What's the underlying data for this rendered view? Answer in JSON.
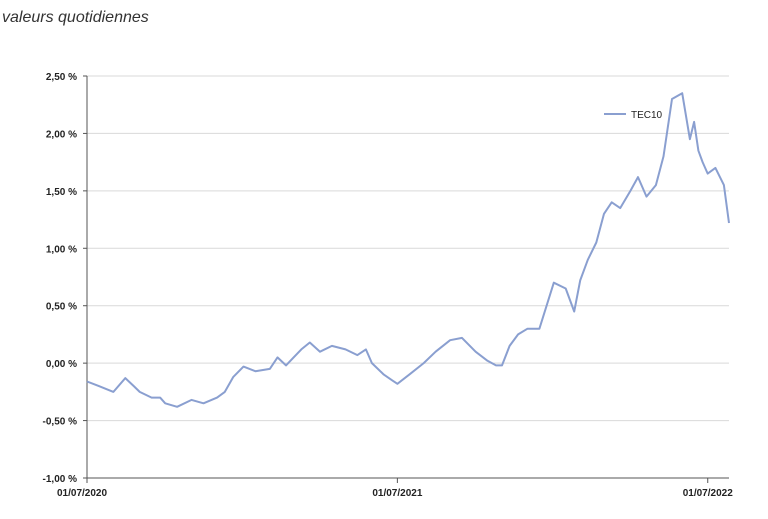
{
  "chart_data": {
    "type": "line",
    "subtitle": "valeurs quotidiennes",
    "title": "",
    "xlabel": "",
    "ylabel": "",
    "ylim": [
      -1.0,
      2.5
    ],
    "xlim": [
      "2020-07-01",
      "2022-07-26"
    ],
    "grid": "horizontal",
    "legend": "top-right",
    "color": "#8a9fd0",
    "y_ticks": [
      {
        "value": 2.5,
        "label": "2,50 %"
      },
      {
        "value": 2.0,
        "label": "2,00 %"
      },
      {
        "value": 1.5,
        "label": "1,50 %"
      },
      {
        "value": 1.0,
        "label": "1,00 %"
      },
      {
        "value": 0.5,
        "label": "0,50 %"
      },
      {
        "value": 0.0,
        "label": "0,00 %"
      },
      {
        "value": -0.5,
        "label": "-0,50 %"
      },
      {
        "value": -1.0,
        "label": "-1,00 %"
      }
    ],
    "x_ticks": [
      {
        "value": "2020-07-01",
        "label": "01/07/2020"
      },
      {
        "value": "2021-07-01",
        "label": "01/07/2021"
      },
      {
        "value": "2022-07-01",
        "label": "01/07/2022"
      }
    ],
    "series": [
      {
        "name": "TEC10",
        "x": [
          "2020-07-01",
          "2020-07-15",
          "2020-08-01",
          "2020-08-15",
          "2020-08-25",
          "2020-09-01",
          "2020-09-15",
          "2020-09-25",
          "2020-10-01",
          "2020-10-15",
          "2020-11-01",
          "2020-11-15",
          "2020-12-01",
          "2020-12-10",
          "2020-12-20",
          "2021-01-01",
          "2021-01-15",
          "2021-02-01",
          "2021-02-10",
          "2021-02-20",
          "2021-03-01",
          "2021-03-10",
          "2021-03-20",
          "2021-04-01",
          "2021-04-15",
          "2021-05-01",
          "2021-05-15",
          "2021-05-25",
          "2021-06-01",
          "2021-06-15",
          "2021-06-25",
          "2021-07-01",
          "2021-07-15",
          "2021-08-01",
          "2021-08-15",
          "2021-09-01",
          "2021-09-15",
          "2021-10-01",
          "2021-10-15",
          "2021-10-25",
          "2021-11-01",
          "2021-11-10",
          "2021-11-20",
          "2021-12-01",
          "2021-12-15",
          "2022-01-01",
          "2022-01-15",
          "2022-01-25",
          "2022-02-01",
          "2022-02-10",
          "2022-02-20",
          "2022-03-01",
          "2022-03-10",
          "2022-03-20",
          "2022-04-01",
          "2022-04-10",
          "2022-04-20",
          "2022-05-01",
          "2022-05-10",
          "2022-05-20",
          "2022-06-01",
          "2022-06-10",
          "2022-06-15",
          "2022-06-20",
          "2022-06-25",
          "2022-07-01",
          "2022-07-10",
          "2022-07-20",
          "2022-07-26"
        ],
        "values": [
          -0.16,
          -0.2,
          -0.25,
          -0.13,
          -0.2,
          -0.25,
          -0.3,
          -0.3,
          -0.35,
          -0.38,
          -0.32,
          -0.35,
          -0.3,
          -0.25,
          -0.12,
          -0.03,
          -0.07,
          -0.05,
          0.05,
          -0.02,
          0.05,
          0.12,
          0.18,
          0.1,
          0.15,
          0.12,
          0.07,
          0.12,
          0.0,
          -0.1,
          -0.15,
          -0.18,
          -0.1,
          0.0,
          0.1,
          0.2,
          0.22,
          0.1,
          0.02,
          -0.02,
          -0.02,
          0.15,
          0.25,
          0.3,
          0.3,
          0.7,
          0.65,
          0.45,
          0.72,
          0.9,
          1.05,
          1.3,
          1.4,
          1.35,
          1.5,
          1.62,
          1.45,
          1.55,
          1.8,
          2.3,
          2.35,
          1.95,
          2.1,
          1.85,
          1.75,
          1.65,
          1.7,
          1.55,
          1.22
        ]
      }
    ]
  }
}
